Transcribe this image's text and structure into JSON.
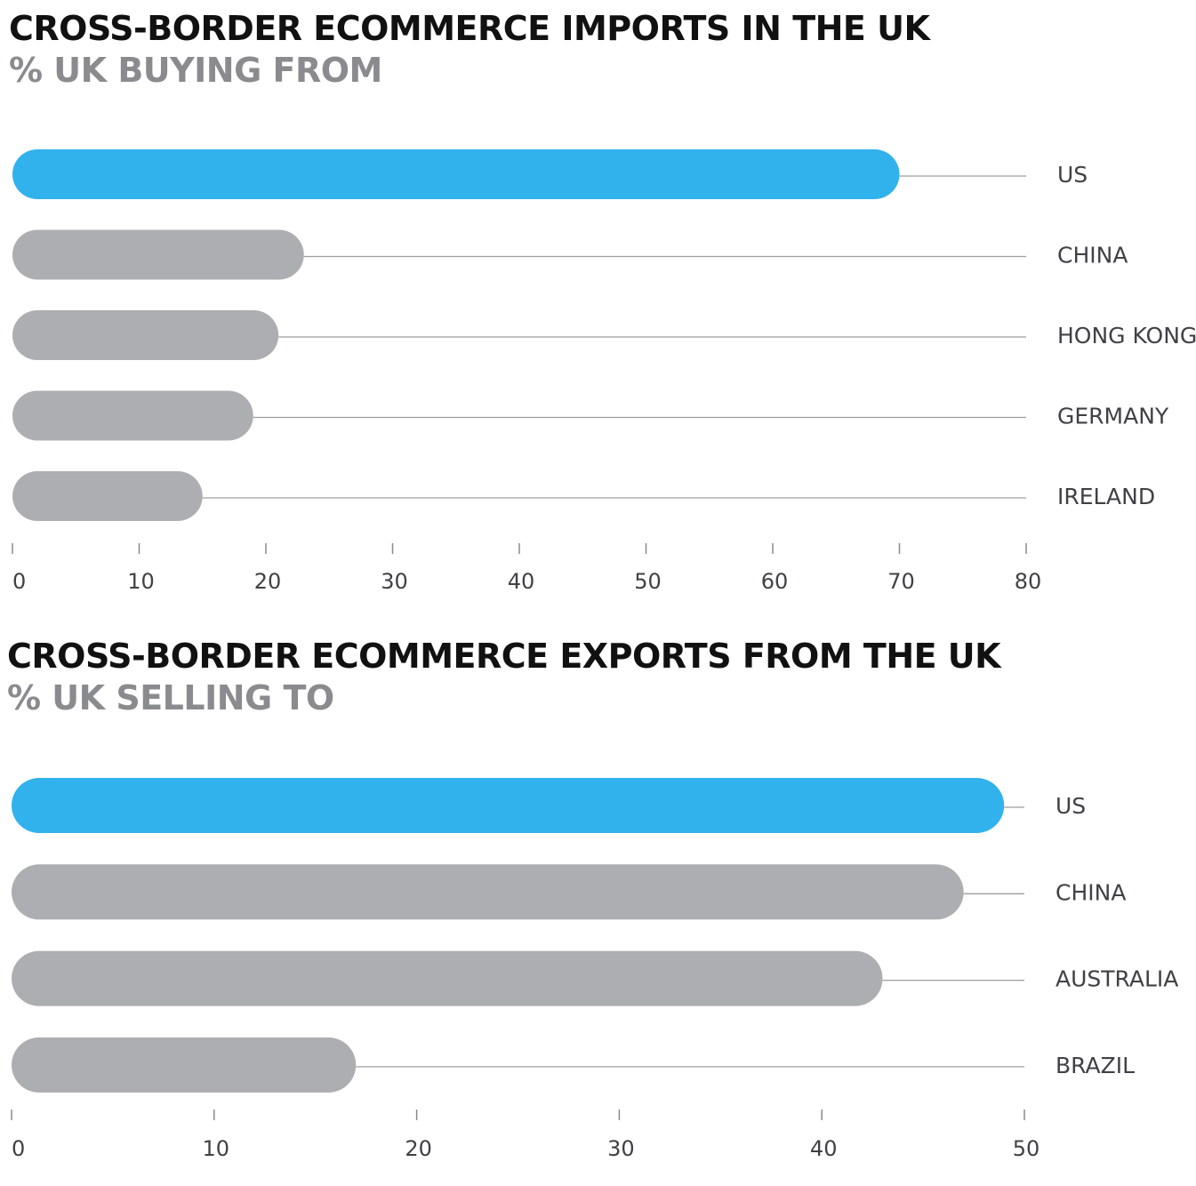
{
  "colors": {
    "highlight": "#31b2ec",
    "bar": "#adaeb1",
    "guide": "#9c9da0",
    "tick": "#8a8b8e"
  },
  "chart_data": [
    {
      "type": "bar",
      "orientation": "horizontal",
      "title": "CROSS-BORDER ECOMMERCE IMPORTS IN THE UK",
      "subtitle": "% UK BUYING FROM",
      "categories": [
        "US",
        "CHINA",
        "HONG KONG",
        "GERMANY",
        "IRELAND"
      ],
      "values": [
        70,
        23,
        21,
        19,
        15
      ],
      "highlight_index": 0,
      "xlim": [
        0,
        80
      ],
      "xticks": [
        "0",
        "10",
        "20",
        "30",
        "40",
        "50",
        "60",
        "70",
        "80"
      ],
      "grid": false,
      "legend": "none"
    },
    {
      "type": "bar",
      "orientation": "horizontal",
      "title": "CROSS-BORDER ECOMMERCE EXPORTS FROM THE UK",
      "subtitle": "% UK SELLING TO",
      "categories": [
        "US",
        "CHINA",
        "AUSTRALIA",
        "BRAZIL"
      ],
      "values": [
        49,
        47,
        43,
        17
      ],
      "highlight_index": 0,
      "xlim": [
        0,
        50
      ],
      "xticks": [
        "0",
        "10",
        "20",
        "30",
        "40",
        "50"
      ],
      "grid": false,
      "legend": "none"
    }
  ]
}
